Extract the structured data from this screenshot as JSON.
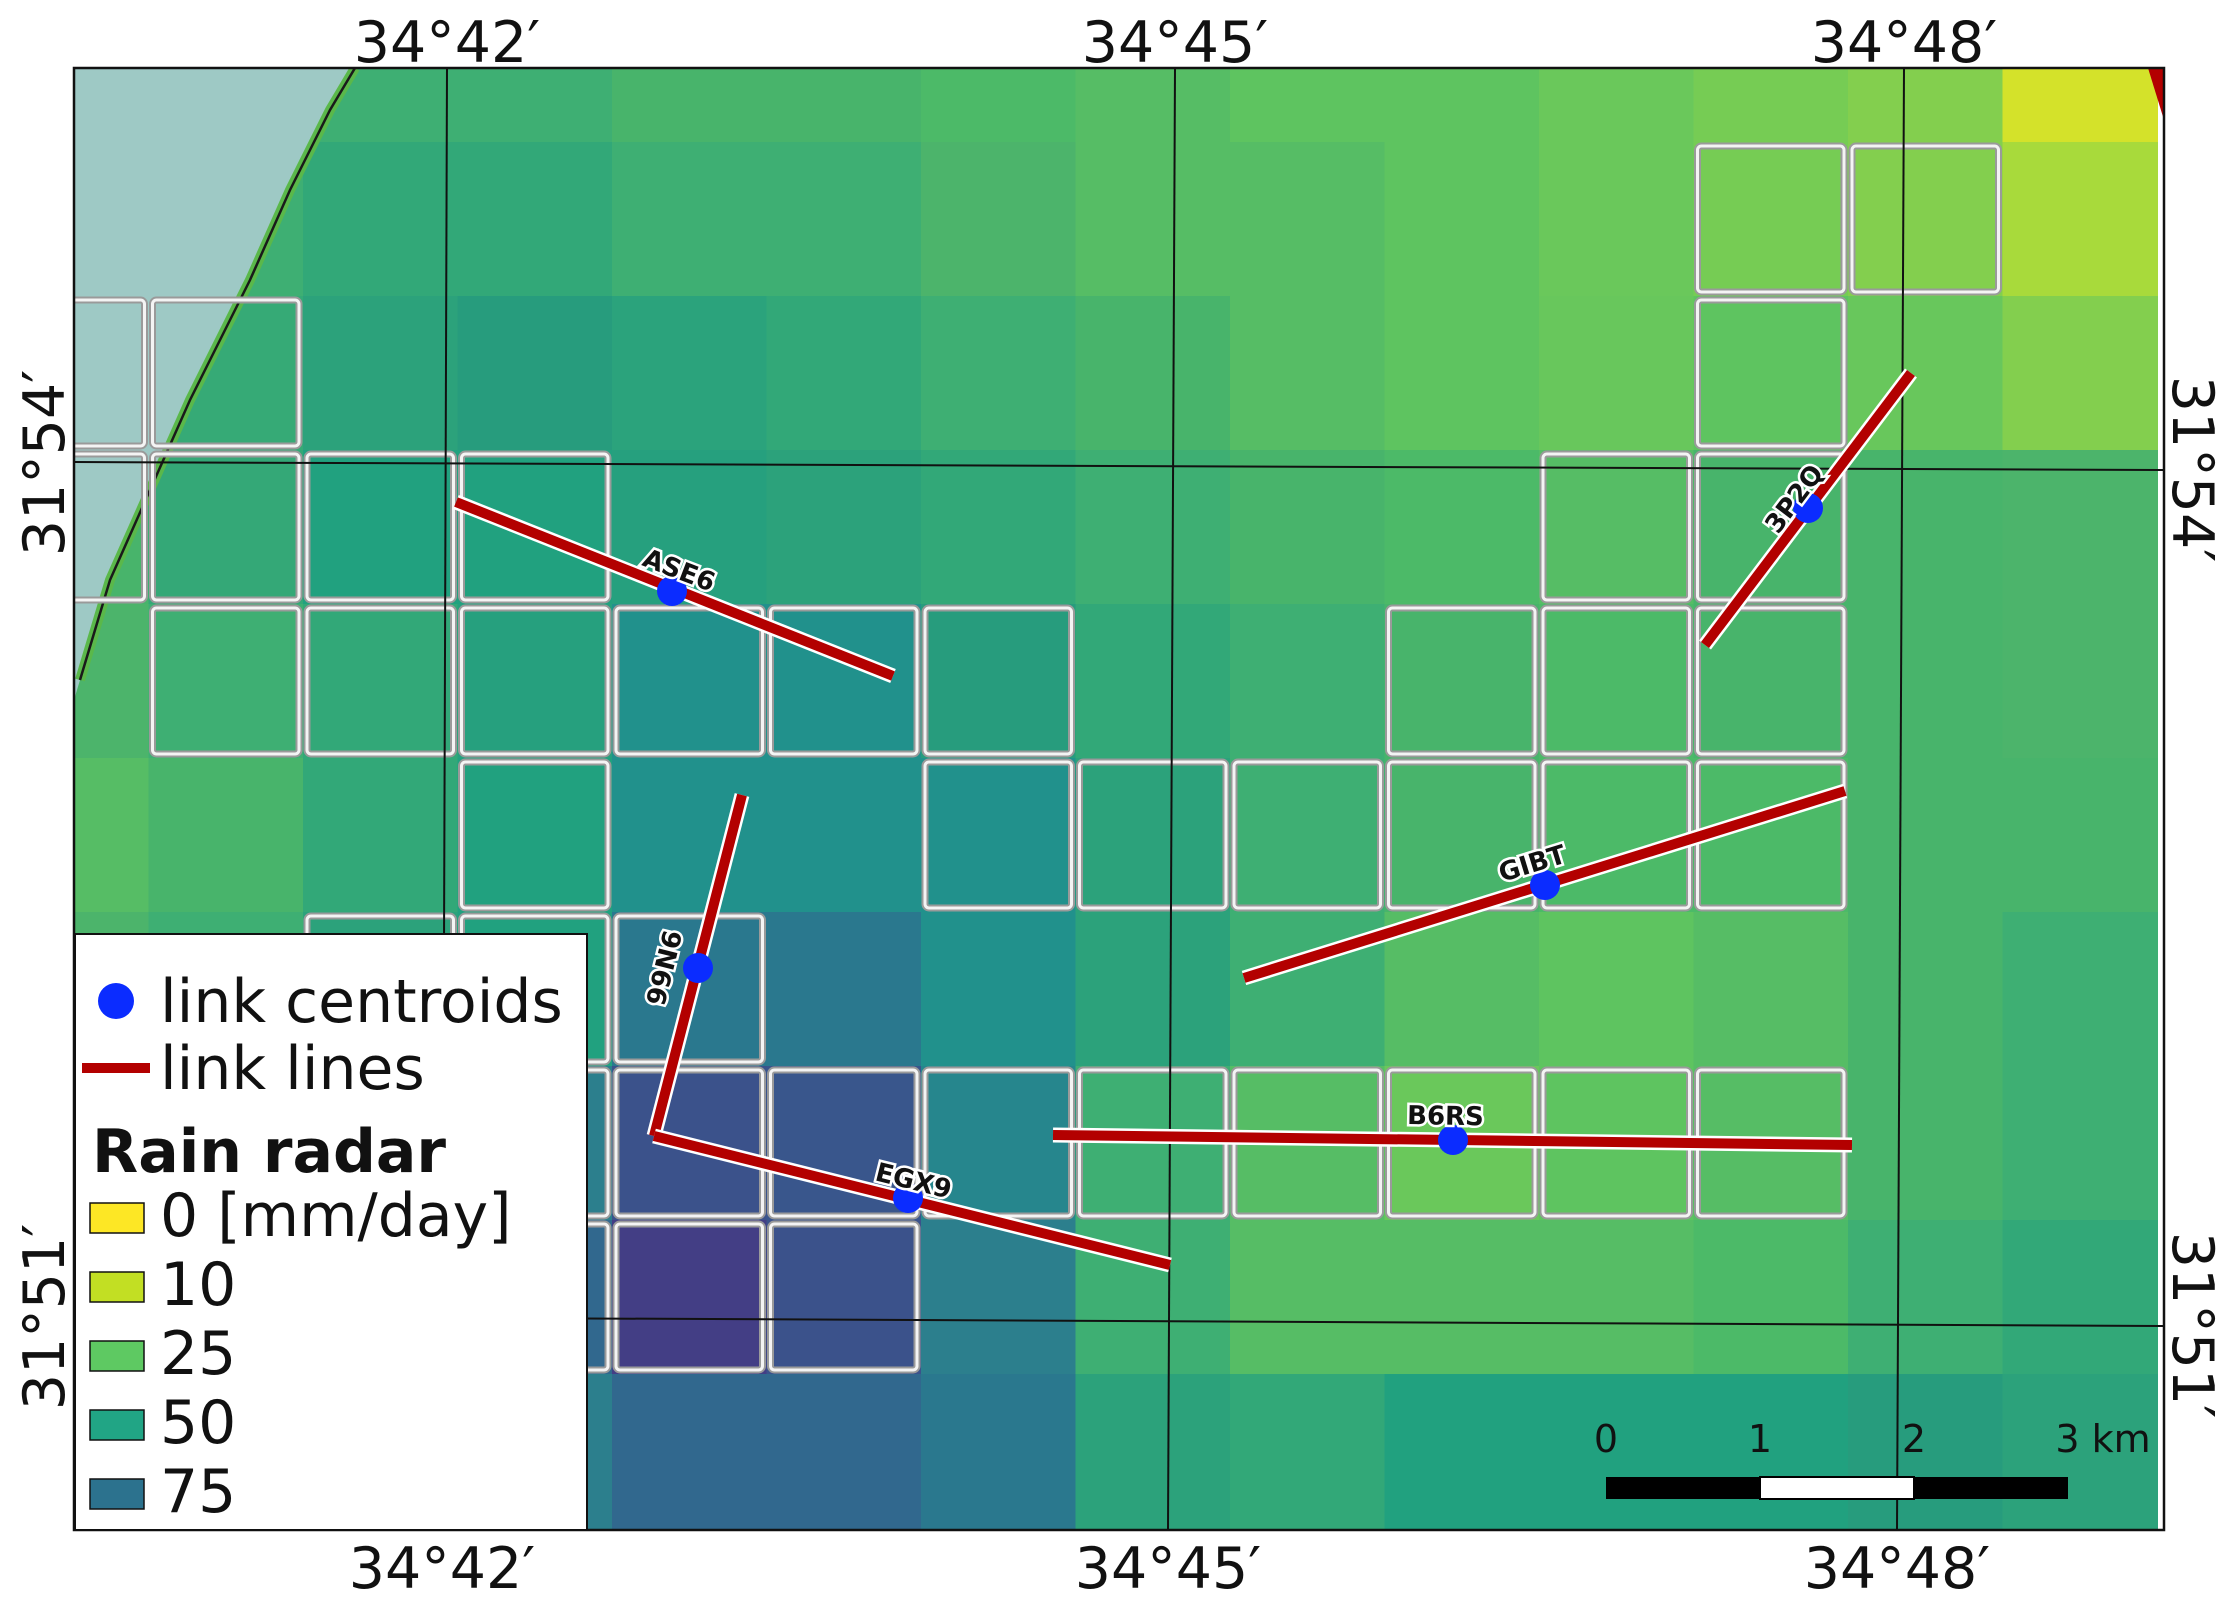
{
  "coordinates": {
    "top": [
      "34°42′",
      "34°45′",
      "34°48′"
    ],
    "bottom": [
      "34°42′",
      "34°45′",
      "34°48′"
    ],
    "left": [
      "31°54′",
      "31°51′"
    ],
    "right": [
      "31°54′",
      "31°51′"
    ]
  },
  "radar_grid": [
    [
      "#49ad6d",
      "#3eaf73",
      "#3eaf73",
      "#3eaf73",
      "#48b46b",
      "#48b46b",
      "#4cba68",
      "#56bd65",
      "#5ec460",
      "#5ec460",
      "#6ac85b",
      "#76cc54",
      "#83cf4e",
      "#d4e22a"
    ],
    [
      "#4cb46b",
      "#3eaf73",
      "#32a878",
      "#32a878",
      "#3eaf73",
      "#3eaf73",
      "#4cb46b",
      "#56bd65",
      "#56bd65",
      "#5ec460",
      "#6ac85b",
      "#76cc54",
      "#83cf4e",
      "#a8da3b"
    ],
    [
      "#4cb46b",
      "#36aa76",
      "#2ca27b",
      "#279c7d",
      "#2ba37c",
      "#32a878",
      "#3eaf73",
      "#48b46b",
      "#56bd65",
      "#5ec460",
      "#68c75c",
      "#5ec460",
      "#68c75c",
      "#83cf4e"
    ],
    [
      "#48b46b",
      "#34a877",
      "#21a17f",
      "#21a17f",
      "#26a07e",
      "#2ca27b",
      "#32a878",
      "#3eaf73",
      "#48b46b",
      "#4cba68",
      "#56bd65",
      "#48b46b",
      "#48b46b",
      "#4cb46b"
    ],
    [
      "#4cb46b",
      "#3eaf73",
      "#32a878",
      "#26a07e",
      "#21918c",
      "#21918c",
      "#279c7d",
      "#32a878",
      "#3eaf73",
      "#48b46b",
      "#4cba68",
      "#48b46b",
      "#48b46b",
      "#4cb46b"
    ],
    [
      "#56bd65",
      "#48b46b",
      "#32a878",
      "#21a17f",
      "#21918c",
      "#21918c",
      "#21918c",
      "#2ca27b",
      "#3eaf73",
      "#48b46b",
      "#4cba68",
      "#4cba68",
      "#48b46b",
      "#48b46b"
    ],
    [
      "#4cb46b",
      "#3eaf73",
      "#2ca27b",
      "#21a17f",
      "#2a788e",
      "#2a788e",
      "#21918c",
      "#2ca27b",
      "#3eaf73",
      "#56bd65",
      "#5ec460",
      "#56bd65",
      "#48b46b",
      "#3eaf73"
    ],
    [
      "#3eaf73",
      "#3eaf73",
      "#21a17f",
      "#2c7f8d",
      "#3b528b",
      "#39568c",
      "#26868d",
      "#3eaf73",
      "#56bd65",
      "#6ac85b",
      "#5ec460",
      "#56bd65",
      "#48b46b",
      "#3eaf73"
    ],
    [
      "#3eaf73",
      "#2ca27b",
      "#21918c",
      "#31688e",
      "#433e85",
      "#3b528b",
      "#2c7f8d",
      "#3eaf73",
      "#56bd65",
      "#56bd65",
      "#56bd65",
      "#4cba68",
      "#3eaf73",
      "#32a878"
    ],
    [
      "#3eaf73",
      "#2ca27b",
      "#21918c",
      "#2c7f8d",
      "#31688e",
      "#31688e",
      "#2a788e",
      "#2ca27b",
      "#32a878",
      "#21a17f",
      "#21a17f",
      "#21a17f",
      "#279c7d",
      "#2ca27b"
    ]
  ],
  "highlight_cells": [
    [
      0,
      2
    ],
    [
      1,
      2
    ],
    [
      0,
      3
    ],
    [
      1,
      3
    ],
    [
      2,
      3
    ],
    [
      3,
      3
    ],
    [
      1,
      4
    ],
    [
      2,
      4
    ],
    [
      3,
      4
    ],
    [
      4,
      4
    ],
    [
      5,
      4
    ],
    [
      6,
      4
    ],
    [
      3,
      5
    ],
    [
      2,
      6
    ],
    [
      3,
      6
    ],
    [
      4,
      6
    ],
    [
      6,
      5
    ],
    [
      7,
      5
    ],
    [
      8,
      5
    ],
    [
      9,
      5
    ],
    [
      10,
      5
    ],
    [
      11,
      5
    ],
    [
      2,
      7
    ],
    [
      3,
      7
    ],
    [
      4,
      7
    ],
    [
      5,
      7
    ],
    [
      6,
      7
    ],
    [
      7,
      7
    ],
    [
      8,
      7
    ],
    [
      9,
      7
    ],
    [
      10,
      7
    ],
    [
      11,
      7
    ],
    [
      3,
      8
    ],
    [
      4,
      8
    ],
    [
      5,
      8
    ],
    [
      11,
      1
    ],
    [
      12,
      1
    ],
    [
      11,
      2
    ],
    [
      11,
      3
    ],
    [
      10,
      3
    ],
    [
      10,
      4
    ],
    [
      11,
      4
    ],
    [
      9,
      4
    ]
  ],
  "links": [
    {
      "id": "ASE6"
    },
    {
      "id": "3P2Q"
    },
    {
      "id": "99N6"
    },
    {
      "id": "GIBT"
    },
    {
      "id": "B6RS"
    },
    {
      "id": "EGX9"
    }
  ],
  "legend": {
    "centroids": "link centroids",
    "lines": "link lines",
    "title": "Rain radar",
    "classes": [
      {
        "label": "0 [mm/day]",
        "color": "#fde725"
      },
      {
        "label": "10",
        "color": "#c2df23"
      },
      {
        "label": "25",
        "color": "#5ec962"
      },
      {
        "label": "50",
        "color": "#21a585"
      },
      {
        "label": "75",
        "color": "#2c728e"
      }
    ]
  },
  "scale_bar": {
    "labels": [
      "0",
      "1",
      "2",
      "3 km"
    ]
  },
  "colors": {
    "link_line": "#b30000",
    "centroid": "#0b2cff",
    "sea": "#9ec9c5",
    "coast": "#5ab84a"
  }
}
